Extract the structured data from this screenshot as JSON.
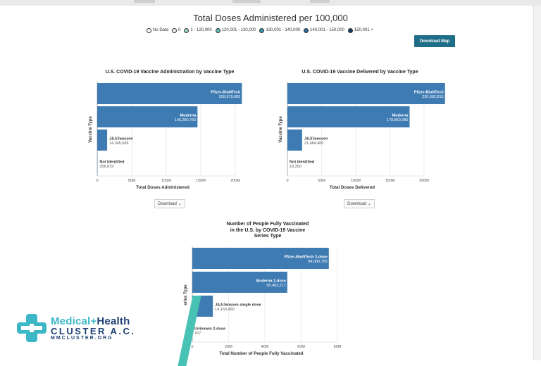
{
  "map": {
    "title": "Total Doses Administered per 100,000",
    "download_label": "Download Map",
    "legend": [
      {
        "label": "No Data",
        "color": "#ffffff"
      },
      {
        "label": "0",
        "color": "#e8f4ec"
      },
      {
        "label": "1 - 120,000",
        "color": "#9ad6b8"
      },
      {
        "label": "120,001 - 130,000",
        "color": "#5cbcb3"
      },
      {
        "label": "130,001 - 140,000",
        "color": "#3597ad"
      },
      {
        "label": "140,001 - 150,000",
        "color": "#2b6a9a"
      },
      {
        "label": "150,001 +",
        "color": "#173a5e"
      }
    ]
  },
  "charts": [
    {
      "title": "U.S. COVID-19 Vaccine Administration by Vaccine Type",
      "ylabel": "Vaccine Type",
      "xlabel": "Total Doses Administered",
      "download_label": "Download",
      "ticks": [
        "0",
        "50M",
        "100M",
        "150M",
        "200M"
      ],
      "bar_color": "#3e7bb3",
      "bars": [
        {
          "name": "Pfizer-BioNTech",
          "value_label": "209,579,682"
        },
        {
          "name": "Moderna",
          "value_label": "145,280,750"
        },
        {
          "name": "J&J/Janssen",
          "value_label": "14,345,665"
        },
        {
          "name": "Not Identified",
          "value_label": "356,819"
        }
      ]
    },
    {
      "title": "U.S. COVID-19 Vaccine Delivered by Vaccine Type",
      "ylabel": "Vaccine Type",
      "xlabel": "Total Doses Delivered",
      "download_label": "Download",
      "ticks": [
        "0",
        "50M",
        "100M",
        "150M",
        "200M"
      ],
      "bar_color": "#3e7bb3",
      "bars": [
        {
          "name": "Pfizer-BioNTech",
          "value_label": "230,662,815"
        },
        {
          "name": "Moderna",
          "value_label": "178,860,380"
        },
        {
          "name": "J&J/Janssen",
          "value_label": "21,484,400"
        },
        {
          "name": "Not Identified",
          "value_label": "19,350"
        }
      ]
    },
    {
      "title_lines": [
        "Number of People Fully Vaccinated",
        "in the U.S. by COVID-19 Vaccine",
        "Series Type"
      ],
      "ylabel": "eries Type",
      "xlabel": "Total Number of People Fully Vaccinated",
      "ticks": [
        "0",
        "20M",
        "40M",
        "60M",
        "80M"
      ],
      "bar_color": "#3e7bb3",
      "bars": [
        {
          "name": "Pfizer-BioNTech 2-dose",
          "value_label": "94,080,758"
        },
        {
          "name": "Moderna 2-dose",
          "value_label": "65,463,217"
        },
        {
          "name": "J&J/Janssen single dose",
          "value_label": "14,160,460"
        },
        {
          "name": "Unknown 2-dose",
          "value_label": "767"
        }
      ]
    }
  ],
  "chart_data": [
    {
      "type": "bar",
      "title": "U.S. COVID-19 Vaccine Administration by Vaccine Type",
      "xlabel": "Total Doses Administered",
      "ylabel": "Vaccine Type",
      "categories": [
        "Pfizer-BioNTech",
        "Moderna",
        "J&J/Janssen",
        "Not Identified"
      ],
      "values": [
        209579682,
        145280750,
        14345665,
        356819
      ],
      "xlim": [
        0,
        210000000
      ]
    },
    {
      "type": "bar",
      "title": "U.S. COVID-19 Vaccine Delivered by Vaccine Type",
      "xlabel": "Total Doses Delivered",
      "ylabel": "Vaccine Type",
      "categories": [
        "Pfizer-BioNTech",
        "Moderna",
        "J&J/Janssen",
        "Not Identified"
      ],
      "values": [
        230662815,
        178860380,
        21484400,
        19350
      ],
      "xlim": [
        0,
        240000000
      ]
    },
    {
      "type": "bar",
      "title": "Number of People Fully Vaccinated in the U.S. by COVID-19 Vaccine Series Type",
      "xlabel": "Total Number of People Fully Vaccinated",
      "ylabel": "Series Type",
      "categories": [
        "Pfizer-BioNTech 2-dose",
        "Moderna 2-dose",
        "J&J/Janssen single dose",
        "Unknown 2-dose"
      ],
      "values": [
        94080758,
        65463217,
        14160460,
        767
      ],
      "xlim": [
        0,
        95000000
      ]
    }
  ],
  "logo": {
    "line1a": "Medical",
    "plus": "+",
    "line1b": "Health",
    "line2": "CLUSTER A.C.",
    "line3": "MMCLUSTER.ORG"
  }
}
